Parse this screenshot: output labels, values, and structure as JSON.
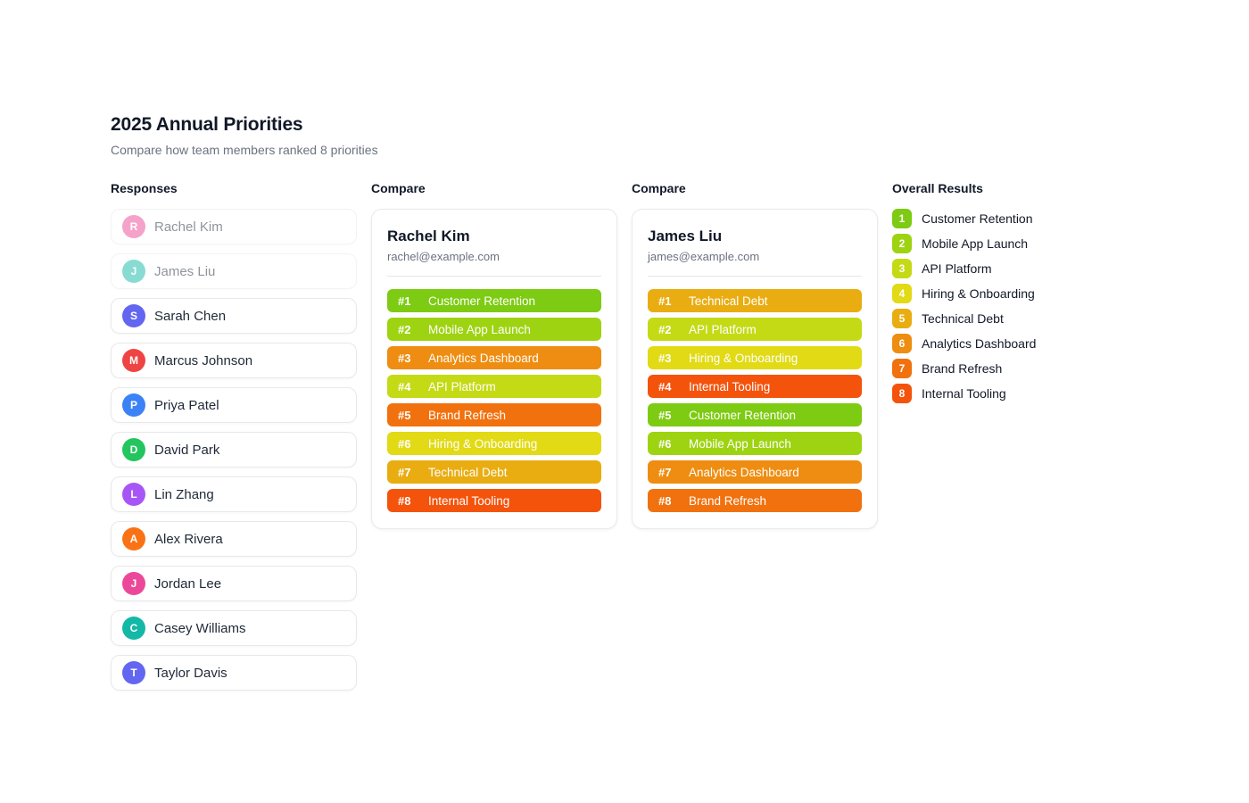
{
  "page": {
    "title": "2025 Annual Priorities",
    "subtitle": "Compare how team members ranked 8 priorities"
  },
  "responses": {
    "heading": "Responses",
    "members": [
      {
        "name": "Rachel Kim",
        "initial": "R",
        "color": "#ec4899",
        "selected": true
      },
      {
        "name": "James Liu",
        "initial": "J",
        "color": "#14b8a6",
        "selected": true
      },
      {
        "name": "Sarah Chen",
        "initial": "S",
        "color": "#6366f1",
        "selected": false
      },
      {
        "name": "Marcus Johnson",
        "initial": "M",
        "color": "#ef4444",
        "selected": false
      },
      {
        "name": "Priya Patel",
        "initial": "P",
        "color": "#3b82f6",
        "selected": false
      },
      {
        "name": "David Park",
        "initial": "D",
        "color": "#22c55e",
        "selected": false
      },
      {
        "name": "Lin Zhang",
        "initial": "L",
        "color": "#a855f7",
        "selected": false
      },
      {
        "name": "Alex Rivera",
        "initial": "A",
        "color": "#f97316",
        "selected": false
      },
      {
        "name": "Jordan Lee",
        "initial": "J",
        "color": "#ec4899",
        "selected": false
      },
      {
        "name": "Casey Williams",
        "initial": "C",
        "color": "#14b8a6",
        "selected": false
      },
      {
        "name": "Taylor Davis",
        "initial": "T",
        "color": "#6366f1",
        "selected": false
      }
    ]
  },
  "compare_cards": [
    {
      "heading": "Compare",
      "name": "Rachel Kim",
      "email": "rachel@example.com",
      "rankings": [
        {
          "rank": "#1",
          "label": "Customer Retention",
          "color": "#7dcb12"
        },
        {
          "rank": "#2",
          "label": "Mobile App Launch",
          "color": "#9ed312"
        },
        {
          "rank": "#3",
          "label": "Analytics Dashboard",
          "color": "#ee8d11"
        },
        {
          "rank": "#4",
          "label": "API Platform",
          "color": "#c4da15"
        },
        {
          "rank": "#5",
          "label": "Brand Refresh",
          "color": "#f1710e"
        },
        {
          "rank": "#6",
          "label": "Hiring & Onboarding",
          "color": "#e1da15"
        },
        {
          "rank": "#7",
          "label": "Technical Debt",
          "color": "#e9ad12"
        },
        {
          "rank": "#8",
          "label": "Internal Tooling",
          "color": "#f4530c"
        }
      ]
    },
    {
      "heading": "Compare",
      "name": "James Liu",
      "email": "james@example.com",
      "rankings": [
        {
          "rank": "#1",
          "label": "Technical Debt",
          "color": "#e9ad12"
        },
        {
          "rank": "#2",
          "label": "API Platform",
          "color": "#c4da15"
        },
        {
          "rank": "#3",
          "label": "Hiring & Onboarding",
          "color": "#e1da15"
        },
        {
          "rank": "#4",
          "label": "Internal Tooling",
          "color": "#f4530c"
        },
        {
          "rank": "#5",
          "label": "Customer Retention",
          "color": "#7dcb12"
        },
        {
          "rank": "#6",
          "label": "Mobile App Launch",
          "color": "#9ed312"
        },
        {
          "rank": "#7",
          "label": "Analytics Dashboard",
          "color": "#ee8d11"
        },
        {
          "rank": "#8",
          "label": "Brand Refresh",
          "color": "#f1710e"
        }
      ]
    }
  ],
  "overall": {
    "heading": "Overall Results",
    "results": [
      {
        "rank": "1",
        "label": "Customer Retention",
        "color": "#7dcb12"
      },
      {
        "rank": "2",
        "label": "Mobile App Launch",
        "color": "#9ed312"
      },
      {
        "rank": "3",
        "label": "API Platform",
        "color": "#c4da15"
      },
      {
        "rank": "4",
        "label": "Hiring & Onboarding",
        "color": "#e1da15"
      },
      {
        "rank": "5",
        "label": "Technical Debt",
        "color": "#e9ad12"
      },
      {
        "rank": "6",
        "label": "Analytics Dashboard",
        "color": "#ee8d11"
      },
      {
        "rank": "7",
        "label": "Brand Refresh",
        "color": "#f1710e"
      },
      {
        "rank": "8",
        "label": "Internal Tooling",
        "color": "#f4530c"
      }
    ]
  }
}
